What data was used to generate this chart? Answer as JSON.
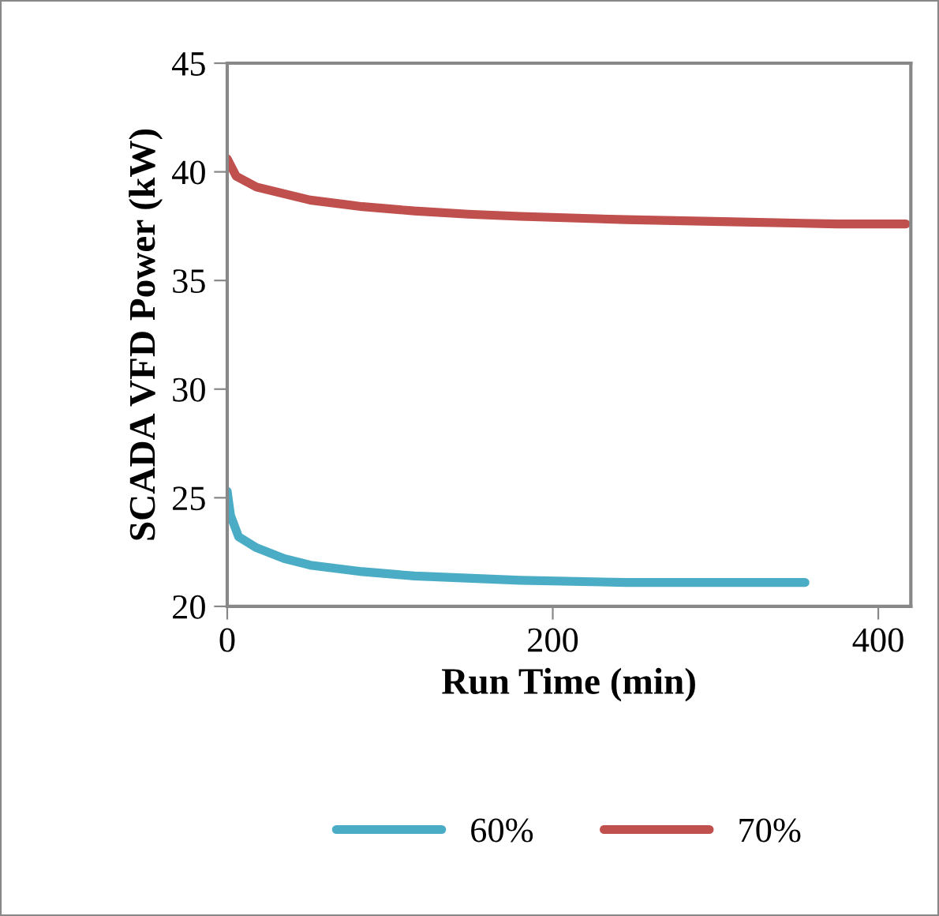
{
  "chart_data": {
    "type": "line",
    "xlabel": "Run Time (min)",
    "ylabel": "SCADA VFD Power (kW)",
    "xlim": [
      0,
      420
    ],
    "xticks": [
      0,
      200,
      400
    ],
    "ylim": [
      20,
      45
    ],
    "yticks": [
      20,
      25,
      30,
      35,
      40,
      45
    ],
    "grid": false,
    "legend": "bottom",
    "marker": "none",
    "line_style": "solid",
    "series": [
      {
        "name": "60%",
        "color": "#4bacc6",
        "x": [
          0,
          2,
          7,
          18,
          35,
          51,
          83,
          115,
          180,
          245,
          310,
          355
        ],
        "values": [
          25.3,
          24.2,
          23.2,
          22.7,
          22.2,
          21.9,
          21.6,
          21.4,
          21.2,
          21.1,
          21.1,
          21.1
        ]
      },
      {
        "name": "70%",
        "color": "#c0504d",
        "x": [
          0,
          5.5,
          18,
          51,
          83,
          115,
          148,
          180,
          245,
          310,
          375,
          417
        ],
        "values": [
          40.6,
          39.8,
          39.3,
          38.7,
          38.4,
          38.2,
          38.05,
          37.95,
          37.8,
          37.7,
          37.6,
          37.6
        ]
      }
    ]
  }
}
